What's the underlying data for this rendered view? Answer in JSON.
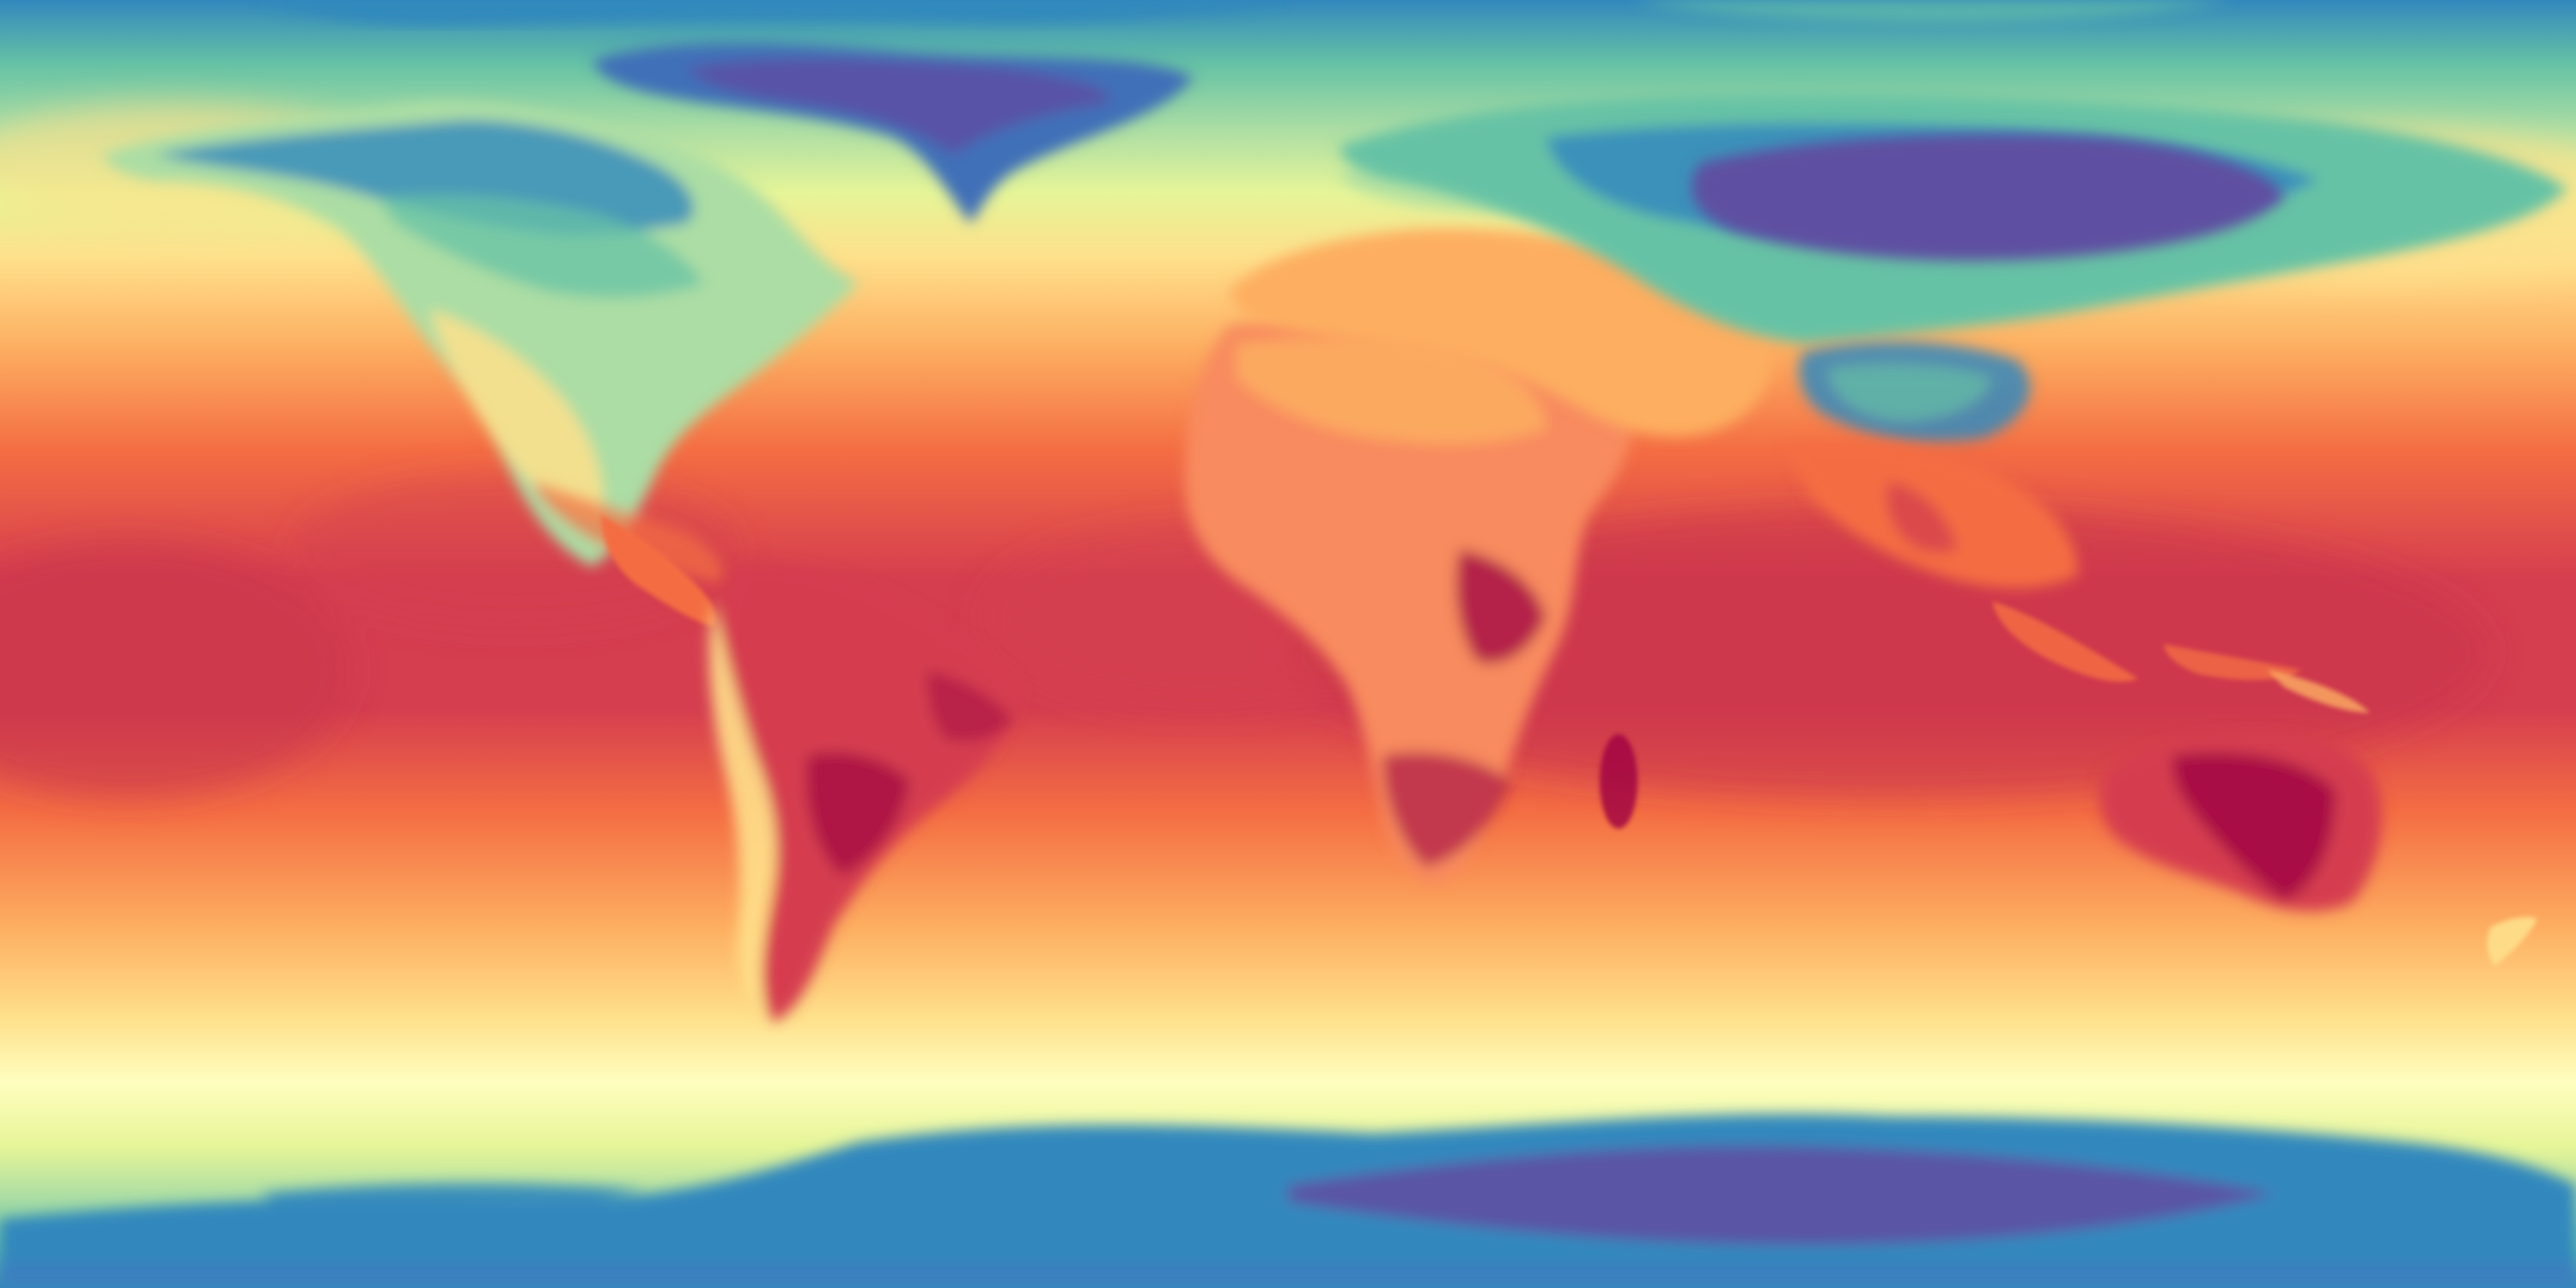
{
  "map": {
    "kind": "global-temperature-field",
    "projection": "equirectangular",
    "colormap": {
      "name": "spectral",
      "stops": [
        "#5e4fa2",
        "#3288bd",
        "#66c2a5",
        "#abdda4",
        "#e6f598",
        "#fffebf",
        "#fee08b",
        "#fdae61",
        "#f46d43",
        "#d53e4f",
        "#9e0142"
      ]
    },
    "features": [
      {
        "name": "north-america-land",
        "class": "land"
      },
      {
        "name": "greenland-land",
        "class": "land"
      },
      {
        "name": "south-america-land",
        "class": "land"
      },
      {
        "name": "africa-land",
        "class": "land"
      },
      {
        "name": "europe-asia-land",
        "class": "land"
      },
      {
        "name": "siberia-cold-core",
        "class": "land"
      },
      {
        "name": "tibetan-plateau",
        "class": "land"
      },
      {
        "name": "australia-land",
        "class": "land"
      },
      {
        "name": "antarctica-land",
        "class": "land"
      }
    ]
  }
}
